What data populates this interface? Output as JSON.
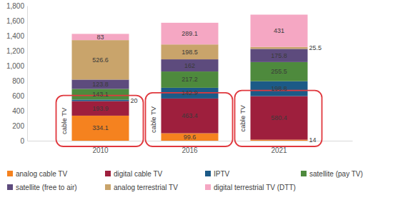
{
  "chart_data": {
    "type": "bar",
    "stacked": true,
    "data_labels": true,
    "legend": "bottom",
    "categories": [
      "2010",
      "2016",
      "2021"
    ],
    "series": [
      {
        "name": "analog cable TV",
        "color": "#f5821f",
        "values": [
          334.1,
          99.6,
          14
        ]
      },
      {
        "name": "digital cable TV",
        "color": "#9e1f3d",
        "values": [
          193.9,
          463.4,
          580.4
        ]
      },
      {
        "name": "IPTV",
        "color": "#1c5a87",
        "values": [
          20,
          142.9,
          198.8
        ]
      },
      {
        "name": "satellite (pay TV)",
        "color": "#4e8a3d",
        "values": [
          143.1,
          217.2,
          255.5
        ]
      },
      {
        "name": "satellite (free to air)",
        "color": "#5d4b7d",
        "values": [
          123.8,
          162,
          175.8
        ]
      },
      {
        "name": "analog terrestrial TV",
        "color": "#c9a46b",
        "values": [
          526.6,
          198.5,
          25.5
        ]
      },
      {
        "name": "digital terrestrial TV (DTT)",
        "color": "#f5a7c3",
        "values": [
          83,
          289.1,
          431
        ]
      }
    ],
    "ylim": [
      0,
      1800
    ],
    "yticks": [
      0,
      200,
      400,
      600,
      800,
      {
        "value": 1000,
        "label": "1,000"
      },
      {
        "value": 1200,
        "label": "1,200"
      },
      {
        "value": 1400,
        "label": "1,400"
      },
      {
        "value": 1600,
        "label": "1,600"
      },
      {
        "value": 1800,
        "label": "1,800"
      }
    ],
    "annotations": [
      {
        "text": "cable TV",
        "category": "2010",
        "series": [
          "analog cable TV",
          "digital cable TV"
        ]
      },
      {
        "text": "cable TV",
        "category": "2016",
        "series": [
          "analog cable TV",
          "digital cable TV"
        ]
      },
      {
        "text": "cable TV",
        "category": "2021",
        "series": [
          "analog cable TV",
          "digital cable TV"
        ]
      }
    ]
  }
}
